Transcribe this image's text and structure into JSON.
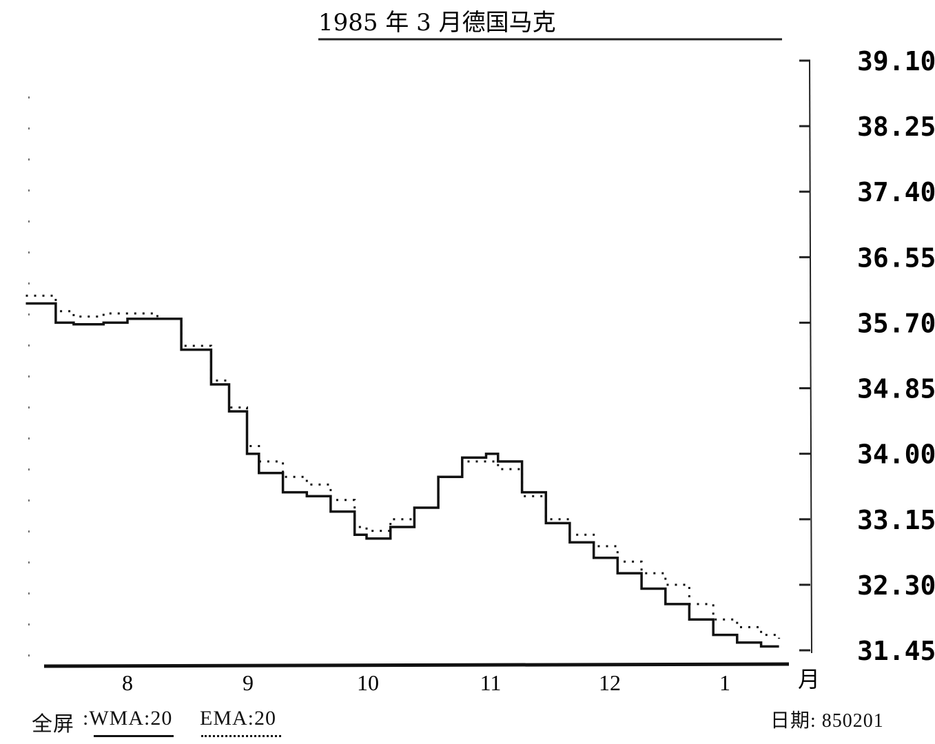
{
  "chart_data": {
    "type": "line",
    "title": "1985 年 3 月德国马克",
    "x_unit_label": "月",
    "categories": [
      "8",
      "9",
      "10",
      "11",
      "12",
      "1"
    ],
    "ylim": [
      31.45,
      39.1
    ],
    "y_ticks": [
      "39.10",
      "38.25",
      "37.40",
      "36.55",
      "35.70",
      "34.85",
      "34.00",
      "33.15",
      "32.30",
      "31.45"
    ],
    "grid": false,
    "series": [
      {
        "name": "WMA:20",
        "style": "solid",
        "color": "#111111",
        "x": [
          7.15,
          7.4,
          7.55,
          7.8,
          8.0,
          8.25,
          8.45,
          8.7,
          8.85,
          9.0,
          9.1,
          9.3,
          9.5,
          9.7,
          9.9,
          10.0,
          10.2,
          10.4,
          10.6,
          10.8,
          11.0,
          11.1,
          11.3,
          11.5,
          11.7,
          11.9,
          12.1,
          12.3,
          12.5,
          12.7,
          12.9,
          13.1,
          13.3,
          13.45
        ],
        "values": [
          35.95,
          35.7,
          35.68,
          35.7,
          35.75,
          35.75,
          35.35,
          34.9,
          34.55,
          34.0,
          33.75,
          33.5,
          33.45,
          33.25,
          32.95,
          32.9,
          33.05,
          33.3,
          33.7,
          33.95,
          34.0,
          33.9,
          33.5,
          33.1,
          32.85,
          32.65,
          32.45,
          32.25,
          32.05,
          31.85,
          31.65,
          31.55,
          31.5,
          31.5
        ]
      },
      {
        "name": "EMA:20",
        "style": "dotted",
        "color": "#111111",
        "x": [
          7.15,
          7.4,
          7.55,
          7.8,
          8.0,
          8.25,
          8.45,
          8.7,
          8.85,
          9.0,
          9.1,
          9.3,
          9.5,
          9.7,
          9.9,
          10.0,
          10.2,
          10.4,
          10.6,
          10.8,
          11.0,
          11.1,
          11.3,
          11.5,
          11.7,
          11.9,
          12.1,
          12.3,
          12.5,
          12.7,
          12.9,
          13.1,
          13.3,
          13.45
        ],
        "values": [
          36.05,
          35.85,
          35.78,
          35.82,
          35.82,
          35.75,
          35.4,
          34.95,
          34.6,
          34.1,
          33.9,
          33.7,
          33.6,
          33.4,
          33.05,
          33.0,
          33.15,
          33.3,
          33.7,
          33.9,
          33.9,
          33.8,
          33.45,
          33.15,
          32.95,
          32.8,
          32.6,
          32.45,
          32.3,
          32.05,
          31.85,
          31.75,
          31.65,
          31.6
        ]
      }
    ]
  },
  "footer": {
    "prefix": "全屏",
    "legend_wma": ":WMA:20",
    "legend_ema": "EMA:20",
    "date": "日期: 850201"
  }
}
